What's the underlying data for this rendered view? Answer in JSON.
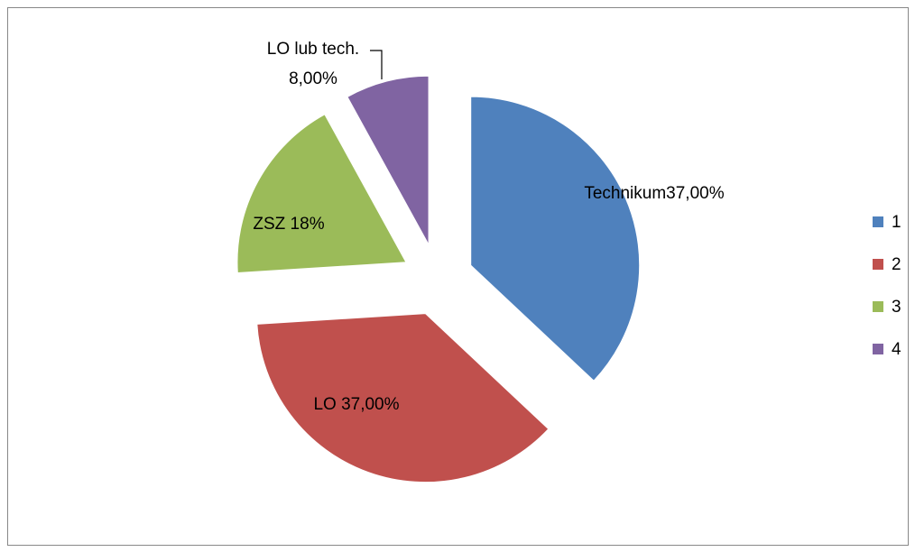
{
  "chart_data": {
    "type": "pie",
    "categories": [
      "1",
      "2",
      "3",
      "4"
    ],
    "values": [
      37,
      37,
      18,
      8
    ],
    "value_labels": [
      "Technikum37,00%",
      "LO 37,00%",
      "ZSZ 18%",
      "LO lub tech. 8,00%"
    ],
    "colors": [
      "#4f81bd",
      "#c0504d",
      "#9bbb59",
      "#8064a2"
    ],
    "exploded": true,
    "legend": "right"
  }
}
